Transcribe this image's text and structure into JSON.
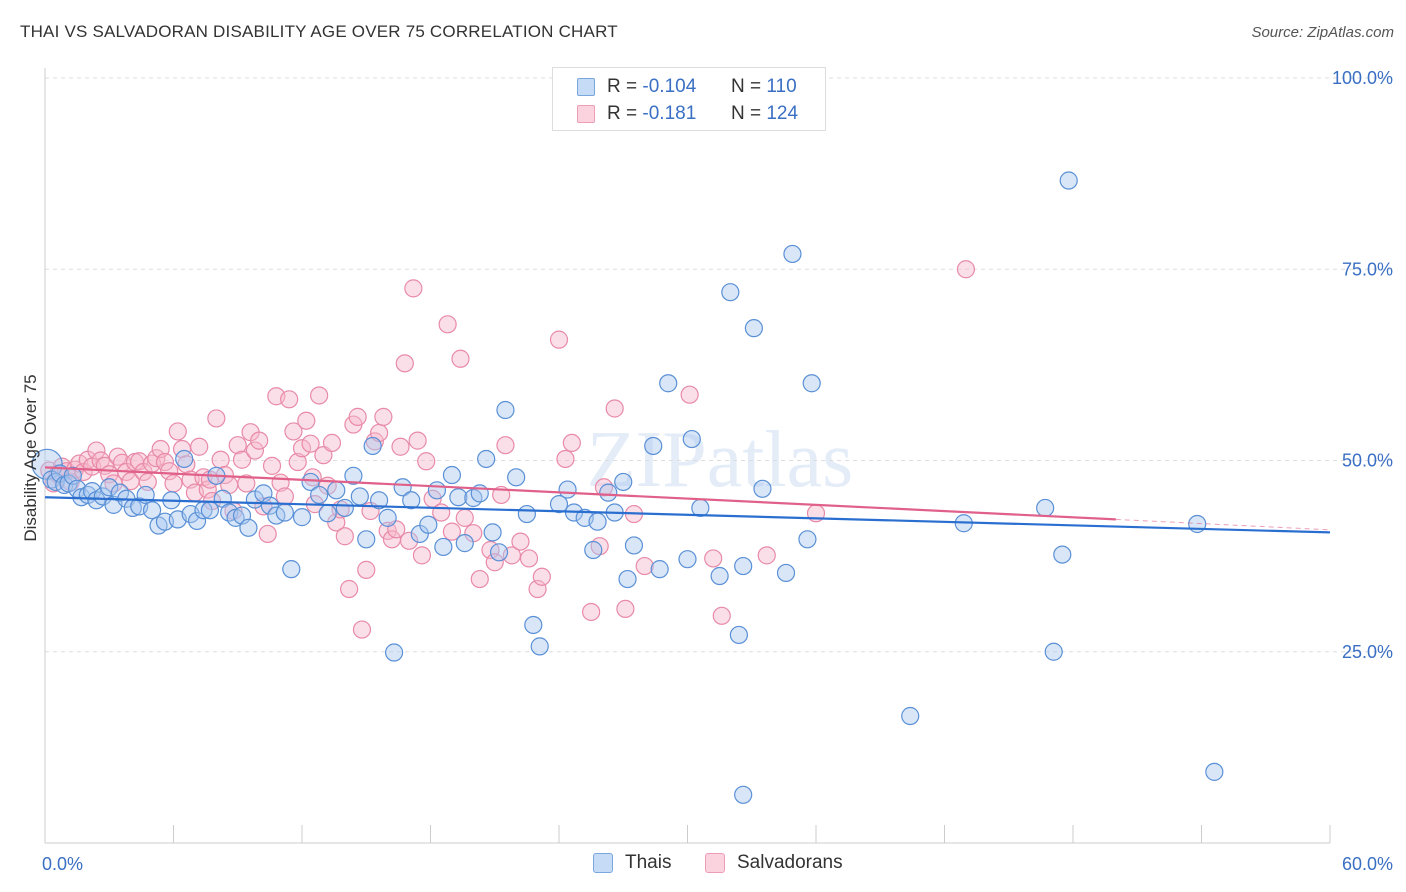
{
  "header": {
    "title": "THAI VS SALVADORAN DISABILITY AGE OVER 75 CORRELATION CHART",
    "source": "Source: ZipAtlas.com"
  },
  "watermark": "ZIPatlas",
  "legend": {
    "rows": [
      {
        "r_label": "R =",
        "r_value": "-0.104",
        "n_label": "N =",
        "n_value": "110",
        "color": "#a9c8ef"
      },
      {
        "r_label": "R =",
        "r_value": "-0.181",
        "n_label": "N =",
        "n_value": "124",
        "color": "#f6b8cb"
      }
    ]
  },
  "bottom_legend": {
    "thais": "Thais",
    "salvadorans": "Salvadorans"
  },
  "colors": {
    "thai_fill": "#a9c8ef",
    "thai_stroke": "#5a90d6",
    "thai_line": "#2a6fd0",
    "salv_fill": "#f6b8cb",
    "salv_stroke": "#e88aa8",
    "salv_line": "#e0608a",
    "tick_label": "#3a6fc4",
    "grid": "#dddddd"
  },
  "chart_data": {
    "type": "scatter",
    "title": "THAI VS SALVADORAN DISABILITY AGE OVER 75 CORRELATION CHART",
    "xlabel": "",
    "ylabel": "Disability Age Over 75",
    "xlim": [
      0,
      60
    ],
    "ylim": [
      0,
      100
    ],
    "x_tick_labels": [
      "0.0%",
      "60.0%"
    ],
    "y_ticks": [
      25,
      50,
      75,
      100
    ],
    "y_tick_labels": [
      "25.0%",
      "50.0%",
      "75.0%",
      "100.0%"
    ],
    "grid": true,
    "legend_position": "top-center",
    "series": [
      {
        "name": "Thais",
        "r": -0.104,
        "n": 110,
        "trend": {
          "x": [
            0,
            60
          ],
          "y": [
            45.2,
            40.6
          ]
        },
        "points": [
          [
            0.1,
            49.5
          ],
          [
            0.3,
            47.5
          ],
          [
            0.5,
            47.2
          ],
          [
            0.7,
            48.3
          ],
          [
            0.9,
            46.8
          ],
          [
            1.1,
            47.0
          ],
          [
            1.3,
            48.0
          ],
          [
            1.5,
            46.3
          ],
          [
            1.7,
            45.2
          ],
          [
            2.0,
            45.5
          ],
          [
            2.2,
            46.0
          ],
          [
            2.4,
            44.8
          ],
          [
            2.7,
            45.3
          ],
          [
            3.0,
            46.5
          ],
          [
            3.2,
            44.2
          ],
          [
            3.5,
            45.8
          ],
          [
            3.8,
            45.0
          ],
          [
            4.1,
            43.8
          ],
          [
            4.4,
            44.0
          ],
          [
            4.7,
            45.5
          ],
          [
            5.0,
            43.5
          ],
          [
            5.3,
            41.5
          ],
          [
            5.6,
            42.0
          ],
          [
            5.9,
            44.8
          ],
          [
            6.2,
            42.3
          ],
          [
            6.5,
            50.2
          ],
          [
            6.8,
            43.0
          ],
          [
            7.1,
            42.1
          ],
          [
            7.4,
            43.5
          ],
          [
            7.7,
            43.5
          ],
          [
            8.0,
            48.0
          ],
          [
            8.3,
            45.0
          ],
          [
            8.6,
            43.2
          ],
          [
            8.9,
            42.5
          ],
          [
            9.2,
            42.8
          ],
          [
            9.5,
            41.2
          ],
          [
            9.8,
            44.9
          ],
          [
            10.2,
            45.7
          ],
          [
            10.5,
            44.1
          ],
          [
            10.8,
            42.8
          ],
          [
            11.2,
            43.2
          ],
          [
            11.5,
            35.8
          ],
          [
            12.0,
            42.6
          ],
          [
            12.4,
            47.2
          ],
          [
            12.8,
            45.5
          ],
          [
            13.2,
            43.1
          ],
          [
            13.6,
            46.1
          ],
          [
            14.0,
            43.8
          ],
          [
            14.4,
            48.0
          ],
          [
            14.7,
            45.3
          ],
          [
            15.0,
            39.7
          ],
          [
            15.3,
            51.9
          ],
          [
            15.6,
            44.8
          ],
          [
            16.0,
            42.5
          ],
          [
            16.3,
            24.9
          ],
          [
            16.7,
            46.5
          ],
          [
            17.1,
            44.8
          ],
          [
            17.5,
            40.4
          ],
          [
            17.9,
            41.6
          ],
          [
            18.3,
            46.1
          ],
          [
            18.6,
            38.7
          ],
          [
            19.0,
            48.1
          ],
          [
            19.3,
            45.2
          ],
          [
            19.6,
            39.2
          ],
          [
            20.0,
            45.1
          ],
          [
            20.3,
            45.7
          ],
          [
            20.6,
            50.2
          ],
          [
            20.9,
            40.6
          ],
          [
            21.2,
            38.0
          ],
          [
            21.5,
            56.6
          ],
          [
            22.0,
            47.8
          ],
          [
            22.5,
            43.0
          ],
          [
            22.8,
            28.5
          ],
          [
            23.1,
            25.7
          ],
          [
            24.0,
            44.3
          ],
          [
            24.4,
            46.2
          ],
          [
            24.7,
            43.2
          ],
          [
            25.2,
            42.5
          ],
          [
            25.6,
            38.3
          ],
          [
            25.8,
            42.0
          ],
          [
            26.3,
            45.8
          ],
          [
            26.6,
            43.2
          ],
          [
            27.0,
            47.2
          ],
          [
            27.2,
            34.5
          ],
          [
            27.5,
            38.9
          ],
          [
            28.4,
            51.9
          ],
          [
            28.7,
            35.8
          ],
          [
            29.1,
            60.1
          ],
          [
            30.0,
            37.1
          ],
          [
            30.2,
            52.8
          ],
          [
            30.6,
            43.8
          ],
          [
            31.5,
            34.9
          ],
          [
            32.0,
            72.0
          ],
          [
            32.4,
            27.2
          ],
          [
            32.6,
            36.2
          ],
          [
            33.1,
            67.3
          ],
          [
            33.5,
            46.3
          ],
          [
            34.6,
            35.3
          ],
          [
            34.9,
            77.0
          ],
          [
            35.6,
            39.7
          ],
          [
            35.8,
            60.1
          ],
          [
            40.4,
            16.6
          ],
          [
            42.9,
            41.8
          ],
          [
            46.7,
            43.8
          ],
          [
            47.1,
            25.0
          ],
          [
            47.5,
            37.7
          ],
          [
            47.8,
            86.6
          ],
          [
            53.8,
            41.7
          ],
          [
            54.6,
            9.3
          ],
          [
            32.6,
            6.3
          ]
        ]
      },
      {
        "name": "Salvadorans",
        "r": -0.181,
        "n": 124,
        "trend": {
          "x": [
            0,
            50
          ],
          "y": [
            49.1,
            42.3
          ]
        },
        "points": [
          [
            0.2,
            48.7
          ],
          [
            0.4,
            47.0
          ],
          [
            0.6,
            48.2
          ],
          [
            0.8,
            49.2
          ],
          [
            1.0,
            48.6
          ],
          [
            1.2,
            47.2
          ],
          [
            1.4,
            48.8
          ],
          [
            1.6,
            49.6
          ],
          [
            1.8,
            48.5
          ],
          [
            2.0,
            50.1
          ],
          [
            2.2,
            49.2
          ],
          [
            2.4,
            51.3
          ],
          [
            2.6,
            50.0
          ],
          [
            2.8,
            49.3
          ],
          [
            3.0,
            48.2
          ],
          [
            3.2,
            47.0
          ],
          [
            3.4,
            50.5
          ],
          [
            3.6,
            49.7
          ],
          [
            3.8,
            48.5
          ],
          [
            4.0,
            47.3
          ],
          [
            4.2,
            49.8
          ],
          [
            4.4,
            49.9
          ],
          [
            4.6,
            48.5
          ],
          [
            4.8,
            47.2
          ],
          [
            5.0,
            49.6
          ],
          [
            5.2,
            50.3
          ],
          [
            5.4,
            51.5
          ],
          [
            5.6,
            49.8
          ],
          [
            5.8,
            48.6
          ],
          [
            6.0,
            47.0
          ],
          [
            6.2,
            53.8
          ],
          [
            6.4,
            51.5
          ],
          [
            6.6,
            49.5
          ],
          [
            6.8,
            47.5
          ],
          [
            7.0,
            45.8
          ],
          [
            7.2,
            51.8
          ],
          [
            7.4,
            47.8
          ],
          [
            7.6,
            46.2
          ],
          [
            7.8,
            44.7
          ],
          [
            8.0,
            55.5
          ],
          [
            8.2,
            50.1
          ],
          [
            8.4,
            48.1
          ],
          [
            8.6,
            46.8
          ],
          [
            8.8,
            43.4
          ],
          [
            9.0,
            52.0
          ],
          [
            9.2,
            50.1
          ],
          [
            9.4,
            47.0
          ],
          [
            9.6,
            53.7
          ],
          [
            9.8,
            51.3
          ],
          [
            10.0,
            52.6
          ],
          [
            10.2,
            44.0
          ],
          [
            10.4,
            40.4
          ],
          [
            10.6,
            49.3
          ],
          [
            10.8,
            58.4
          ],
          [
            11.0,
            47.1
          ],
          [
            11.2,
            45.3
          ],
          [
            11.4,
            58.0
          ],
          [
            11.6,
            53.8
          ],
          [
            11.8,
            49.8
          ],
          [
            12.0,
            51.6
          ],
          [
            12.2,
            55.2
          ],
          [
            12.4,
            52.2
          ],
          [
            12.6,
            44.3
          ],
          [
            12.8,
            58.5
          ],
          [
            13.0,
            50.7
          ],
          [
            13.2,
            46.7
          ],
          [
            13.4,
            52.3
          ],
          [
            13.6,
            41.9
          ],
          [
            13.8,
            43.6
          ],
          [
            14.0,
            40.1
          ],
          [
            14.2,
            33.2
          ],
          [
            14.4,
            54.7
          ],
          [
            14.6,
            55.7
          ],
          [
            14.8,
            27.9
          ],
          [
            15.0,
            35.7
          ],
          [
            15.2,
            43.4
          ],
          [
            15.4,
            52.5
          ],
          [
            15.6,
            53.6
          ],
          [
            15.8,
            55.7
          ],
          [
            16.0,
            40.8
          ],
          [
            16.2,
            39.7
          ],
          [
            16.4,
            41.0
          ],
          [
            16.6,
            51.8
          ],
          [
            16.8,
            62.7
          ],
          [
            17.0,
            39.5
          ],
          [
            17.2,
            72.5
          ],
          [
            17.4,
            52.6
          ],
          [
            17.6,
            37.6
          ],
          [
            17.8,
            49.9
          ],
          [
            18.1,
            45.0
          ],
          [
            18.5,
            43.2
          ],
          [
            18.8,
            67.8
          ],
          [
            19.0,
            40.7
          ],
          [
            19.4,
            63.3
          ],
          [
            19.6,
            42.5
          ],
          [
            20.0,
            40.5
          ],
          [
            20.3,
            34.5
          ],
          [
            20.8,
            38.3
          ],
          [
            21.0,
            36.7
          ],
          [
            21.3,
            45.5
          ],
          [
            21.5,
            52.0
          ],
          [
            21.8,
            37.6
          ],
          [
            22.2,
            39.4
          ],
          [
            22.6,
            37.2
          ],
          [
            23.0,
            33.2
          ],
          [
            23.2,
            34.8
          ],
          [
            24.0,
            65.8
          ],
          [
            24.3,
            50.2
          ],
          [
            24.6,
            52.3
          ],
          [
            25.5,
            30.2
          ],
          [
            25.9,
            38.8
          ],
          [
            26.1,
            46.5
          ],
          [
            26.6,
            56.8
          ],
          [
            27.1,
            30.6
          ],
          [
            27.5,
            43.0
          ],
          [
            28.0,
            36.2
          ],
          [
            30.1,
            58.6
          ],
          [
            31.2,
            37.2
          ],
          [
            31.6,
            29.7
          ],
          [
            33.7,
            37.6
          ],
          [
            36.0,
            43.1
          ],
          [
            43.0,
            75.0
          ],
          [
            7.7,
            47.5
          ],
          [
            12.5,
            47.8
          ]
        ]
      }
    ]
  }
}
